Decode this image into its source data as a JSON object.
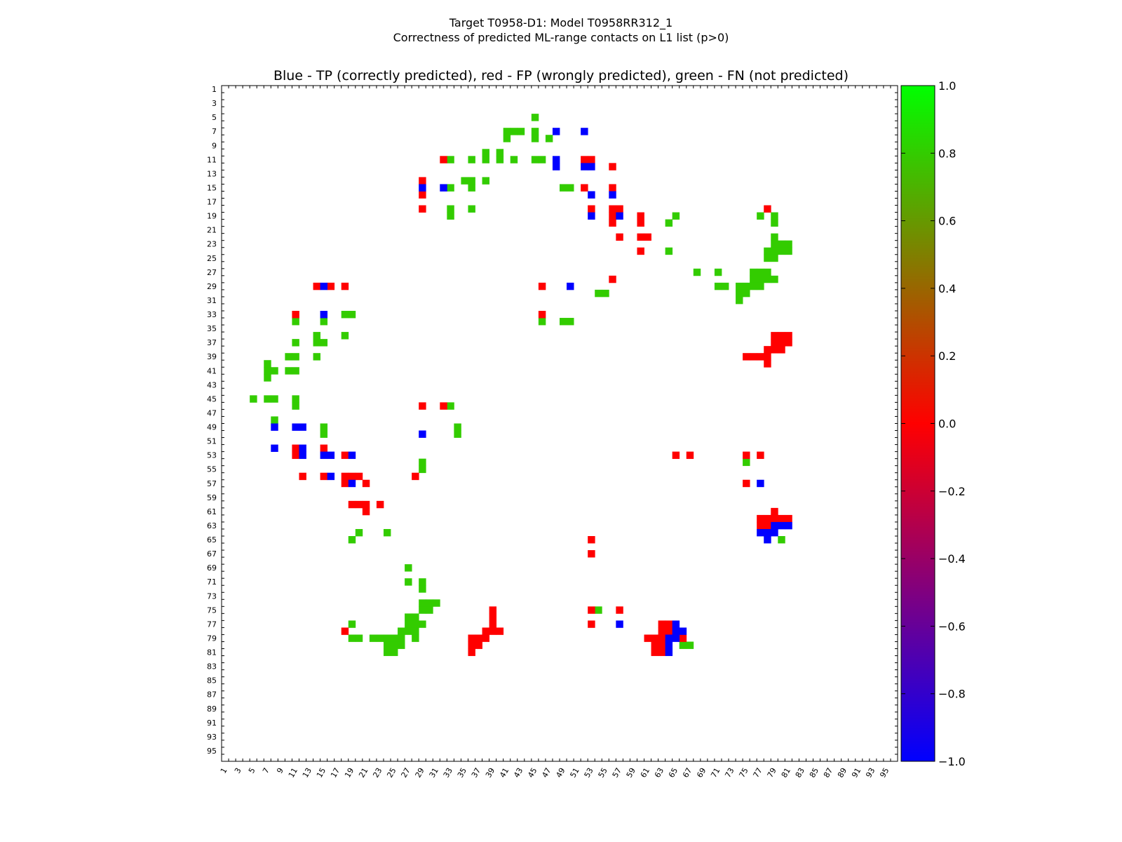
{
  "figure": {
    "title_line1": "Target T0958-D1: Model T0958RR312_1",
    "title_line2": "Correctness of predicted ML-range contacts on L1 list (p>0)"
  },
  "chart_data": {
    "type": "heatmap",
    "title": "Blue - TP (correctly predicted), red - FP (wrongly predicted), green - FN (not predicted)",
    "xlabel": "",
    "ylabel": "",
    "xlim": [
      1,
      96
    ],
    "ylim": [
      1,
      96
    ],
    "x_ticks": [
      1,
      3,
      5,
      7,
      9,
      11,
      13,
      15,
      17,
      19,
      21,
      23,
      25,
      27,
      29,
      31,
      33,
      35,
      37,
      39,
      41,
      43,
      45,
      47,
      49,
      51,
      53,
      55,
      57,
      59,
      61,
      63,
      65,
      67,
      69,
      71,
      73,
      75,
      77,
      79,
      81,
      83,
      85,
      87,
      89,
      91,
      93,
      95
    ],
    "y_ticks": [
      1,
      3,
      5,
      7,
      9,
      11,
      13,
      15,
      17,
      19,
      21,
      23,
      25,
      27,
      29,
      31,
      33,
      35,
      37,
      39,
      41,
      43,
      45,
      47,
      49,
      51,
      53,
      55,
      57,
      59,
      61,
      63,
      65,
      67,
      69,
      71,
      73,
      75,
      77,
      79,
      81,
      83,
      85,
      87,
      89,
      91,
      93,
      95
    ],
    "colorbar": {
      "min": -1.0,
      "max": 1.0,
      "ticks": [
        "1.0",
        "0.8",
        "0.6",
        "0.4",
        "0.2",
        "0.0",
        "−0.2",
        "−0.4",
        "−0.6",
        "−0.8",
        "−1.0"
      ],
      "colors": [
        "#0000ff",
        "#ff0000",
        "#00ff00"
      ]
    },
    "colors": {
      "tp": "#0000ff",
      "fp": "#ff0000",
      "fn": "#33cc00"
    },
    "grid": false,
    "tp_cells": [
      [
        48,
        7
      ],
      [
        52,
        7
      ],
      [
        48,
        11
      ],
      [
        48,
        12
      ],
      [
        52,
        12
      ],
      [
        53,
        12
      ],
      [
        29,
        15
      ],
      [
        32,
        15
      ],
      [
        53,
        16
      ],
      [
        56,
        16
      ],
      [
        53,
        19
      ],
      [
        57,
        19
      ],
      [
        15,
        29
      ],
      [
        50,
        29
      ],
      [
        15,
        33
      ],
      [
        8,
        49
      ],
      [
        11,
        49
      ],
      [
        12,
        49
      ],
      [
        29,
        50
      ],
      [
        8,
        52
      ],
      [
        12,
        52
      ],
      [
        12,
        53
      ],
      [
        15,
        53
      ],
      [
        16,
        53
      ],
      [
        19,
        53
      ],
      [
        16,
        56
      ],
      [
        19,
        57
      ],
      [
        77,
        57
      ],
      [
        79,
        63
      ],
      [
        80,
        63
      ],
      [
        81,
        63
      ],
      [
        77,
        64
      ],
      [
        78,
        64
      ],
      [
        79,
        64
      ],
      [
        78,
        65
      ],
      [
        57,
        77
      ],
      [
        65,
        77
      ],
      [
        65,
        78
      ],
      [
        66,
        78
      ],
      [
        64,
        79
      ],
      [
        65,
        79
      ],
      [
        64,
        80
      ],
      [
        64,
        81
      ]
    ],
    "fp_cells": [
      [
        32,
        11
      ],
      [
        52,
        11
      ],
      [
        53,
        11
      ],
      [
        56,
        12
      ],
      [
        29,
        14
      ],
      [
        52,
        15
      ],
      [
        56,
        15
      ],
      [
        29,
        16
      ],
      [
        29,
        18
      ],
      [
        53,
        18
      ],
      [
        56,
        18
      ],
      [
        57,
        18
      ],
      [
        78,
        18
      ],
      [
        56,
        19
      ],
      [
        60,
        19
      ],
      [
        56,
        20
      ],
      [
        60,
        20
      ],
      [
        57,
        22
      ],
      [
        60,
        22
      ],
      [
        61,
        22
      ],
      [
        60,
        24
      ],
      [
        56,
        28
      ],
      [
        14,
        29
      ],
      [
        16,
        29
      ],
      [
        18,
        29
      ],
      [
        46,
        29
      ],
      [
        11,
        33
      ],
      [
        46,
        33
      ],
      [
        79,
        36
      ],
      [
        80,
        36
      ],
      [
        81,
        36
      ],
      [
        79,
        37
      ],
      [
        80,
        37
      ],
      [
        81,
        37
      ],
      [
        78,
        38
      ],
      [
        79,
        38
      ],
      [
        80,
        38
      ],
      [
        75,
        39
      ],
      [
        76,
        39
      ],
      [
        77,
        39
      ],
      [
        78,
        39
      ],
      [
        78,
        40
      ],
      [
        29,
        46
      ],
      [
        32,
        46
      ],
      [
        11,
        52
      ],
      [
        15,
        52
      ],
      [
        11,
        53
      ],
      [
        18,
        53
      ],
      [
        65,
        53
      ],
      [
        67,
        53
      ],
      [
        75,
        53
      ],
      [
        77,
        53
      ],
      [
        12,
        56
      ],
      [
        15,
        56
      ],
      [
        18,
        56
      ],
      [
        19,
        56
      ],
      [
        20,
        56
      ],
      [
        28,
        56
      ],
      [
        18,
        57
      ],
      [
        21,
        57
      ],
      [
        75,
        57
      ],
      [
        19,
        60
      ],
      [
        20,
        60
      ],
      [
        21,
        60
      ],
      [
        23,
        60
      ],
      [
        21,
        61
      ],
      [
        79,
        61
      ],
      [
        77,
        62
      ],
      [
        78,
        62
      ],
      [
        79,
        62
      ],
      [
        80,
        62
      ],
      [
        81,
        62
      ],
      [
        77,
        63
      ],
      [
        78,
        63
      ],
      [
        53,
        65
      ],
      [
        53,
        67
      ],
      [
        39,
        75
      ],
      [
        53,
        75
      ],
      [
        57,
        75
      ],
      [
        39,
        76
      ],
      [
        63,
        77
      ],
      [
        64,
        77
      ],
      [
        53,
        77
      ],
      [
        39,
        77
      ],
      [
        18,
        78
      ],
      [
        38,
        78
      ],
      [
        39,
        78
      ],
      [
        40,
        78
      ],
      [
        63,
        78
      ],
      [
        64,
        78
      ],
      [
        36,
        79
      ],
      [
        37,
        79
      ],
      [
        38,
        79
      ],
      [
        61,
        79
      ],
      [
        62,
        79
      ],
      [
        63,
        79
      ],
      [
        66,
        79
      ],
      [
        36,
        80
      ],
      [
        37,
        80
      ],
      [
        63,
        80
      ],
      [
        62,
        80
      ],
      [
        36,
        81
      ],
      [
        62,
        81
      ],
      [
        63,
        81
      ]
    ],
    "fn_cells": [
      [
        45,
        5
      ],
      [
        41,
        7
      ],
      [
        42,
        7
      ],
      [
        43,
        7
      ],
      [
        45,
        7
      ],
      [
        41,
        8
      ],
      [
        45,
        8
      ],
      [
        47,
        8
      ],
      [
        33,
        11
      ],
      [
        36,
        11
      ],
      [
        38,
        11
      ],
      [
        40,
        11
      ],
      [
        42,
        11
      ],
      [
        45,
        11
      ],
      [
        46,
        11
      ],
      [
        38,
        10
      ],
      [
        40,
        10
      ],
      [
        35,
        14
      ],
      [
        36,
        14
      ],
      [
        38,
        14
      ],
      [
        33,
        15
      ],
      [
        36,
        15
      ],
      [
        49,
        15
      ],
      [
        50,
        15
      ],
      [
        33,
        18
      ],
      [
        36,
        18
      ],
      [
        33,
        19
      ],
      [
        65,
        19
      ],
      [
        77,
        19
      ],
      [
        79,
        19
      ],
      [
        64,
        20
      ],
      [
        79,
        20
      ],
      [
        79,
        22
      ],
      [
        79,
        23
      ],
      [
        80,
        23
      ],
      [
        81,
        23
      ],
      [
        64,
        24
      ],
      [
        78,
        24
      ],
      [
        79,
        24
      ],
      [
        80,
        24
      ],
      [
        81,
        24
      ],
      [
        78,
        25
      ],
      [
        79,
        25
      ],
      [
        68,
        27
      ],
      [
        71,
        27
      ],
      [
        76,
        27
      ],
      [
        77,
        27
      ],
      [
        78,
        27
      ],
      [
        76,
        28
      ],
      [
        77,
        28
      ],
      [
        78,
        28
      ],
      [
        79,
        28
      ],
      [
        71,
        29
      ],
      [
        72,
        29
      ],
      [
        74,
        29
      ],
      [
        75,
        29
      ],
      [
        76,
        29
      ],
      [
        77,
        29
      ],
      [
        54,
        30
      ],
      [
        55,
        30
      ],
      [
        74,
        30
      ],
      [
        75,
        30
      ],
      [
        74,
        31
      ],
      [
        18,
        33
      ],
      [
        19,
        33
      ],
      [
        11,
        34
      ],
      [
        15,
        34
      ],
      [
        49,
        34
      ],
      [
        50,
        34
      ],
      [
        46,
        34
      ],
      [
        18,
        36
      ],
      [
        14,
        36
      ],
      [
        11,
        37
      ],
      [
        14,
        37
      ],
      [
        15,
        37
      ],
      [
        10,
        39
      ],
      [
        11,
        39
      ],
      [
        14,
        39
      ],
      [
        7,
        40
      ],
      [
        7,
        41
      ],
      [
        8,
        41
      ],
      [
        10,
        41
      ],
      [
        11,
        41
      ],
      [
        7,
        42
      ],
      [
        5,
        45
      ],
      [
        7,
        45
      ],
      [
        8,
        45
      ],
      [
        11,
        45
      ],
      [
        11,
        46
      ],
      [
        33,
        46
      ],
      [
        8,
        48
      ],
      [
        15,
        49
      ],
      [
        34,
        49
      ],
      [
        15,
        50
      ],
      [
        34,
        50
      ],
      [
        29,
        54
      ],
      [
        75,
        54
      ],
      [
        29,
        55
      ],
      [
        20,
        64
      ],
      [
        24,
        64
      ],
      [
        19,
        65
      ],
      [
        80,
        65
      ],
      [
        27,
        69
      ],
      [
        27,
        71
      ],
      [
        29,
        71
      ],
      [
        29,
        72
      ],
      [
        29,
        74
      ],
      [
        30,
        74
      ],
      [
        31,
        74
      ],
      [
        29,
        75
      ],
      [
        30,
        75
      ],
      [
        54,
        75
      ],
      [
        27,
        76
      ],
      [
        28,
        76
      ],
      [
        27,
        77
      ],
      [
        28,
        77
      ],
      [
        29,
        77
      ],
      [
        19,
        77
      ],
      [
        26,
        78
      ],
      [
        27,
        78
      ],
      [
        28,
        78
      ],
      [
        25,
        79
      ],
      [
        26,
        79
      ],
      [
        19,
        79
      ],
      [
        20,
        79
      ],
      [
        22,
        79
      ],
      [
        23,
        79
      ],
      [
        24,
        79
      ],
      [
        28,
        79
      ],
      [
        24,
        80
      ],
      [
        25,
        80
      ],
      [
        26,
        80
      ],
      [
        24,
        81
      ],
      [
        25,
        81
      ],
      [
        66,
        80
      ],
      [
        67,
        80
      ]
    ]
  }
}
